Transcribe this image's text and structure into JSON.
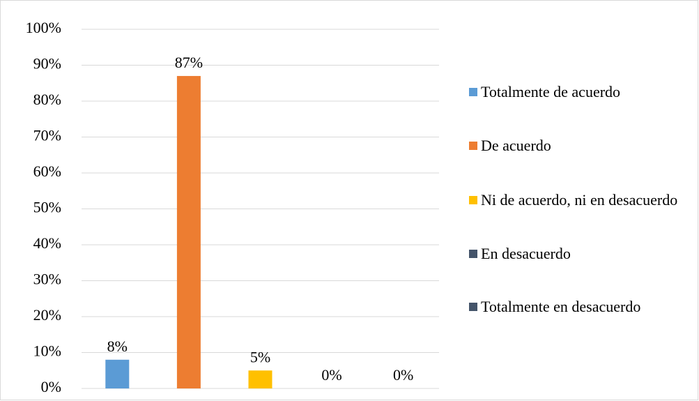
{
  "chart_data": {
    "type": "bar",
    "series": [
      {
        "name": "Totalmente de acuerdo",
        "color": "#5b9bd5",
        "values": [
          8
        ],
        "value_labels": [
          "8%"
        ]
      },
      {
        "name": "De acuerdo",
        "color": "#ed7d31",
        "values": [
          87
        ],
        "value_labels": [
          "87%"
        ]
      },
      {
        "name": "Ni de acuerdo, ni en desacuerdo",
        "color": "#ffc000",
        "values": [
          5
        ],
        "value_labels": [
          "5%"
        ]
      },
      {
        "name": "En desacuerdo",
        "color": "#44546a",
        "values": [
          0
        ],
        "value_labels": [
          "0%"
        ]
      },
      {
        "name": "Totalmente en desacuerdo",
        "color": "#44546a",
        "values": [
          0
        ],
        "value_labels": [
          "0%"
        ]
      }
    ],
    "ylim": [
      0,
      100
    ],
    "yticks": [
      {
        "value": 0,
        "label": "0%"
      },
      {
        "value": 10,
        "label": "10%"
      },
      {
        "value": 20,
        "label": "20%"
      },
      {
        "value": 30,
        "label": "30%"
      },
      {
        "value": 40,
        "label": "40%"
      },
      {
        "value": 50,
        "label": "50%"
      },
      {
        "value": 60,
        "label": "60%"
      },
      {
        "value": 70,
        "label": "70%"
      },
      {
        "value": 80,
        "label": "80%"
      },
      {
        "value": 90,
        "label": "90%"
      },
      {
        "value": 100,
        "label": "100%"
      }
    ],
    "grid": true,
    "legend": "right"
  }
}
